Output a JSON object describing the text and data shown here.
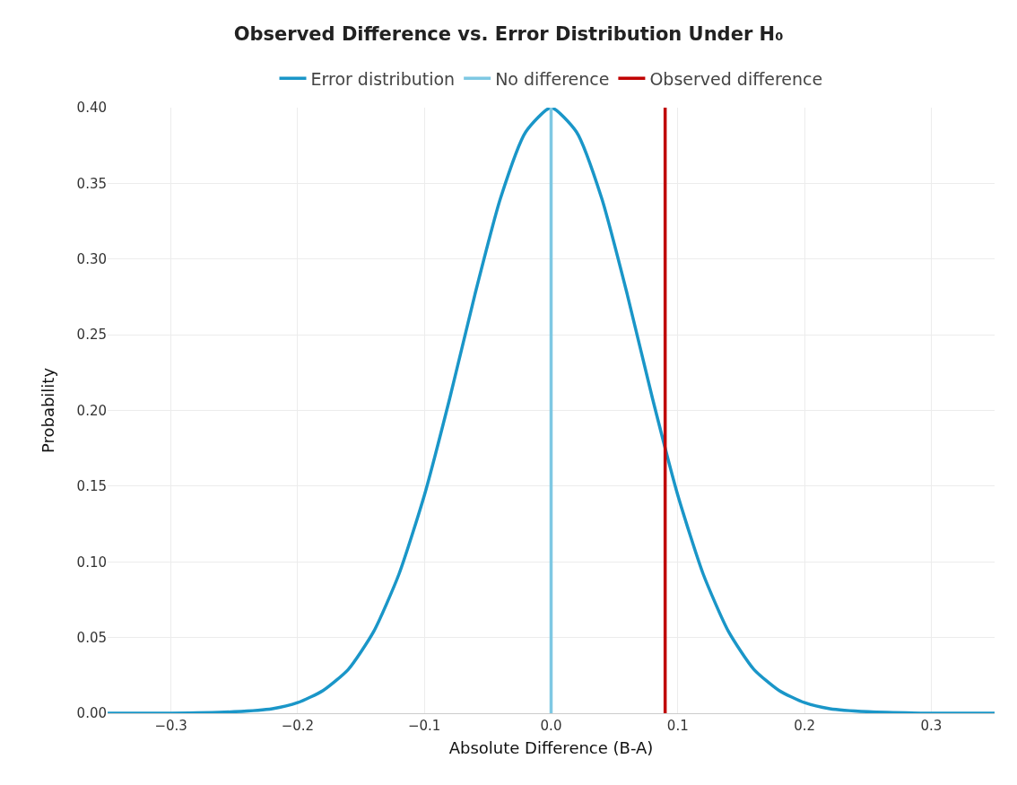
{
  "chart_data": {
    "type": "line",
    "title": "Observed Difference vs. Error Distribution Under H₀",
    "xlabel": "Absolute Difference (B-A)",
    "ylabel": "Probability",
    "x": [
      -0.35,
      -0.3,
      -0.25,
      -0.22,
      -0.2,
      -0.18,
      -0.16,
      -0.14,
      -0.12,
      -0.1,
      -0.08,
      -0.06,
      -0.04,
      -0.02,
      0,
      0.02,
      0.04,
      0.06,
      0.08,
      0.1,
      0.12,
      0.14,
      0.16,
      0.18,
      0.2,
      0.22,
      0.25,
      0.3,
      0.35
    ],
    "series": [
      {
        "name": "Error distribution",
        "color": "#1a96c8",
        "values": [
          0,
          0,
          0.001,
          0.003,
          0.007,
          0.015,
          0.029,
          0.054,
          0.092,
          0.144,
          0.208,
          0.277,
          0.34,
          0.384,
          0.4,
          0.384,
          0.34,
          0.277,
          0.208,
          0.144,
          0.092,
          0.054,
          0.029,
          0.015,
          0.007,
          0.003,
          0.001,
          0,
          0
        ]
      }
    ],
    "ref_lines": [
      {
        "axis": "x",
        "value": 0,
        "label": "No difference",
        "color": "#7ec8e3"
      },
      {
        "axis": "x",
        "value": 0.09,
        "label": "Observed difference",
        "color": "#c00000"
      }
    ],
    "xlim": [
      -0.35,
      0.35
    ],
    "xticks": [
      {
        "value": -0.3,
        "label": "−0.3"
      },
      {
        "value": -0.2,
        "label": "−0.2"
      },
      {
        "value": -0.1,
        "label": "−0.1"
      },
      {
        "value": 0,
        "label": "0.0"
      },
      0.1,
      0.2,
      0.3
    ],
    "ylim": [
      0,
      0.4
    ],
    "yticks": [
      {
        "value": 0,
        "label": "0.00"
      },
      0.05,
      {
        "value": 0.1,
        "label": "0.10"
      },
      0.15,
      {
        "value": 0.2,
        "label": "0.20"
      },
      0.25,
      {
        "value": 0.3,
        "label": "0.30"
      },
      0.35,
      {
        "value": 0.4,
        "label": "0.40"
      }
    ],
    "grid": true,
    "legend": "top",
    "marker": "none",
    "line_style": "solid"
  }
}
